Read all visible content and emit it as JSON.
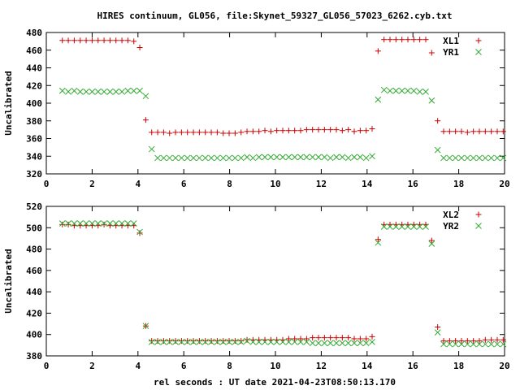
{
  "title": "HIRES continuum, GL056, file:Skynet_59327_GL056_57023_6262.cyb.txt",
  "xlabel": "rel seconds : UT date 2021-04-23T08:50:13.170",
  "colors": {
    "series1": "#cc0000",
    "series2": "#33aa33",
    "axis": "#000000"
  },
  "chart_data": [
    {
      "type": "scatter",
      "ylabel": "Uncalibrated",
      "xlim": [
        0,
        20
      ],
      "ylim": [
        320,
        480
      ],
      "xticks": [
        "0",
        "2",
        "4",
        "6",
        "8",
        "10",
        "12",
        "14",
        "16",
        "18",
        "20"
      ],
      "yticks": [
        "320",
        "340",
        "360",
        "380",
        "400",
        "420",
        "440",
        "460",
        "480"
      ],
      "legend_position": "top-right",
      "series": [
        {
          "name": "XL1",
          "marker": "plus",
          "x": [
            0.7,
            0.96,
            1.22,
            1.48,
            1.74,
            2.0,
            2.26,
            2.52,
            2.78,
            3.04,
            3.3,
            3.56,
            3.82,
            4.08,
            4.34,
            4.6,
            4.86,
            5.12,
            5.38,
            5.64,
            5.9,
            6.16,
            6.42,
            6.68,
            6.94,
            7.2,
            7.46,
            7.72,
            7.98,
            8.24,
            8.5,
            8.76,
            9.02,
            9.28,
            9.54,
            9.8,
            10.06,
            10.32,
            10.58,
            10.84,
            11.1,
            11.36,
            11.62,
            11.88,
            12.14,
            12.4,
            12.66,
            12.92,
            13.18,
            13.44,
            13.7,
            13.96,
            14.22,
            14.48,
            14.74,
            15.0,
            15.26,
            15.52,
            15.78,
            16.04,
            16.3,
            16.56,
            16.82,
            17.08,
            17.34,
            17.6,
            17.86,
            18.12,
            18.38,
            18.64,
            18.9,
            19.16,
            19.42,
            19.68,
            19.94
          ],
          "y": [
            471,
            471,
            471,
            471,
            471,
            471,
            471,
            471,
            471,
            471,
            471,
            471,
            470,
            463,
            381,
            367,
            367,
            367,
            366,
            367,
            367,
            367,
            367,
            367,
            367,
            367,
            367,
            366,
            366,
            366,
            367,
            368,
            368,
            368,
            369,
            368,
            369,
            369,
            369,
            369,
            369,
            370,
            370,
            370,
            370,
            370,
            370,
            369,
            370,
            368,
            369,
            369,
            371,
            459,
            472,
            472,
            472,
            472,
            472,
            472,
            472,
            472,
            457,
            380,
            368,
            368,
            368,
            368,
            367,
            368,
            368,
            368,
            368,
            368,
            368
          ]
        },
        {
          "name": "YR1",
          "marker": "cross",
          "x": [
            0.7,
            0.96,
            1.22,
            1.48,
            1.74,
            2.0,
            2.26,
            2.52,
            2.78,
            3.04,
            3.3,
            3.56,
            3.82,
            4.08,
            4.34,
            4.6,
            4.86,
            5.12,
            5.38,
            5.64,
            5.9,
            6.16,
            6.42,
            6.68,
            6.94,
            7.2,
            7.46,
            7.72,
            7.98,
            8.24,
            8.5,
            8.76,
            9.02,
            9.28,
            9.54,
            9.8,
            10.06,
            10.32,
            10.58,
            10.84,
            11.1,
            11.36,
            11.62,
            11.88,
            12.14,
            12.4,
            12.66,
            12.92,
            13.18,
            13.44,
            13.7,
            13.96,
            14.22,
            14.48,
            14.74,
            15.0,
            15.26,
            15.52,
            15.78,
            16.04,
            16.3,
            16.56,
            16.82,
            17.08,
            17.34,
            17.6,
            17.86,
            18.12,
            18.38,
            18.64,
            18.9,
            19.16,
            19.42,
            19.68,
            19.94
          ],
          "y": [
            414,
            413,
            414,
            413,
            413,
            413,
            413,
            413,
            413,
            413,
            413,
            414,
            414,
            414,
            408,
            348,
            338,
            338,
            338,
            338,
            338,
            338,
            338,
            338,
            338,
            338,
            338,
            338,
            338,
            338,
            338,
            339,
            338,
            339,
            339,
            339,
            339,
            339,
            339,
            339,
            339,
            339,
            339,
            339,
            339,
            338,
            339,
            339,
            338,
            339,
            339,
            338,
            340,
            404,
            415,
            414,
            414,
            414,
            414,
            414,
            413,
            413,
            403,
            347,
            338,
            338,
            338,
            338,
            338,
            338,
            338,
            338,
            338,
            338,
            338
          ]
        }
      ]
    },
    {
      "type": "scatter",
      "ylabel": "Uncalibrated",
      "xlim": [
        0,
        20
      ],
      "ylim": [
        380,
        520
      ],
      "xticks": [
        "0",
        "2",
        "4",
        "6",
        "8",
        "10",
        "12",
        "14",
        "16",
        "18",
        "20"
      ],
      "yticks": [
        "380",
        "400",
        "420",
        "440",
        "460",
        "480",
        "500",
        "520"
      ],
      "legend_position": "top-right",
      "series": [
        {
          "name": "XL2",
          "marker": "plus",
          "x": [
            0.7,
            0.96,
            1.22,
            1.48,
            1.74,
            2.0,
            2.26,
            2.52,
            2.78,
            3.04,
            3.3,
            3.56,
            3.82,
            4.08,
            4.34,
            4.6,
            4.86,
            5.12,
            5.38,
            5.64,
            5.9,
            6.16,
            6.42,
            6.68,
            6.94,
            7.2,
            7.46,
            7.72,
            7.98,
            8.24,
            8.5,
            8.76,
            9.02,
            9.28,
            9.54,
            9.8,
            10.06,
            10.32,
            10.58,
            10.84,
            11.1,
            11.36,
            11.62,
            11.88,
            12.14,
            12.4,
            12.66,
            12.92,
            13.18,
            13.44,
            13.7,
            13.96,
            14.22,
            14.48,
            14.74,
            15.0,
            15.26,
            15.52,
            15.78,
            16.04,
            16.3,
            16.56,
            16.82,
            17.08,
            17.34,
            17.6,
            17.86,
            18.12,
            18.38,
            18.64,
            18.9,
            19.16,
            19.42,
            19.68,
            19.94
          ],
          "y": [
            503,
            503,
            502,
            502,
            502,
            502,
            502,
            503,
            502,
            502,
            502,
            502,
            502,
            495,
            408,
            394,
            394,
            394,
            394,
            394,
            394,
            394,
            394,
            394,
            394,
            394,
            394,
            394,
            394,
            394,
            394,
            395,
            395,
            395,
            395,
            395,
            395,
            395,
            396,
            396,
            396,
            396,
            397,
            397,
            397,
            397,
            397,
            397,
            397,
            396,
            396,
            396,
            398,
            489,
            503,
            503,
            503,
            503,
            503,
            503,
            503,
            503,
            488,
            407,
            394,
            394,
            394,
            394,
            394,
            394,
            394,
            395,
            395,
            395,
            395
          ]
        },
        {
          "name": "YR2",
          "marker": "cross",
          "x": [
            0.7,
            0.96,
            1.22,
            1.48,
            1.74,
            2.0,
            2.26,
            2.52,
            2.78,
            3.04,
            3.3,
            3.56,
            3.82,
            4.08,
            4.34,
            4.6,
            4.86,
            5.12,
            5.38,
            5.64,
            5.9,
            6.16,
            6.42,
            6.68,
            6.94,
            7.2,
            7.46,
            7.72,
            7.98,
            8.24,
            8.5,
            8.76,
            9.02,
            9.28,
            9.54,
            9.8,
            10.06,
            10.32,
            10.58,
            10.84,
            11.1,
            11.36,
            11.62,
            11.88,
            12.14,
            12.4,
            12.66,
            12.92,
            13.18,
            13.44,
            13.7,
            13.96,
            14.22,
            14.48,
            14.74,
            15.0,
            15.26,
            15.52,
            15.78,
            16.04,
            16.3,
            16.56,
            16.82,
            17.08,
            17.34,
            17.6,
            17.86,
            18.12,
            18.38,
            18.64,
            18.9,
            19.16,
            19.42,
            19.68,
            19.94
          ],
          "y": [
            504,
            504,
            504,
            504,
            504,
            504,
            504,
            504,
            504,
            504,
            504,
            504,
            504,
            496,
            408,
            393,
            393,
            393,
            393,
            393,
            393,
            393,
            393,
            393,
            393,
            393,
            393,
            393,
            393,
            393,
            393,
            394,
            393,
            393,
            393,
            393,
            393,
            393,
            393,
            393,
            393,
            393,
            392,
            392,
            392,
            392,
            392,
            392,
            392,
            392,
            392,
            392,
            393,
            486,
            501,
            501,
            501,
            501,
            501,
            501,
            501,
            501,
            485,
            402,
            391,
            391,
            391,
            391,
            391,
            391,
            391,
            391,
            391,
            391,
            391
          ]
        }
      ]
    }
  ]
}
